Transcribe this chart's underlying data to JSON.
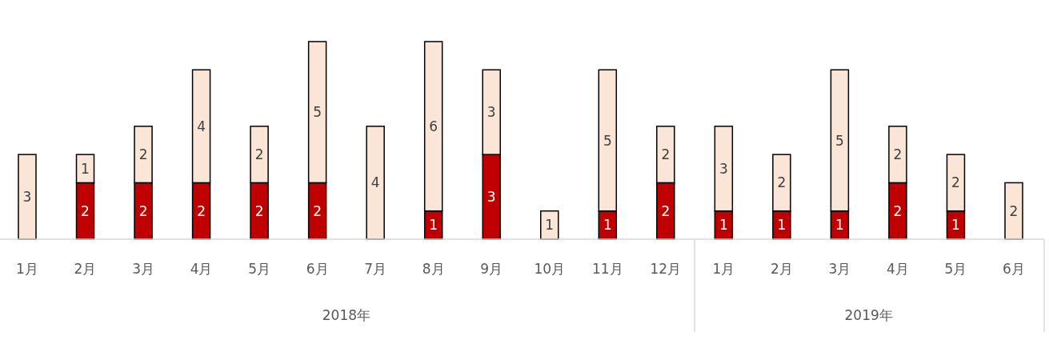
{
  "chart_data": {
    "type": "bar",
    "stacked": true,
    "data_labels": true,
    "categories": [
      "1月",
      "2月",
      "3月",
      "4月",
      "5月",
      "6月",
      "7月",
      "8月",
      "9月",
      "10月",
      "11月",
      "12月",
      "1月",
      "2月",
      "3月",
      "4月",
      "5月",
      "6月"
    ],
    "series": [
      {
        "color": "#c00000",
        "values": [
          null,
          2,
          2,
          2,
          2,
          2,
          null,
          1,
          3,
          null,
          1,
          2,
          1,
          1,
          1,
          2,
          1,
          null
        ]
      },
      {
        "color": "#fbe5d6",
        "values": [
          3,
          1,
          2,
          4,
          2,
          5,
          4,
          6,
          3,
          1,
          5,
          2,
          3,
          2,
          5,
          2,
          2,
          2
        ]
      }
    ],
    "annotations": [
      "2018年",
      "2019年"
    ]
  }
}
